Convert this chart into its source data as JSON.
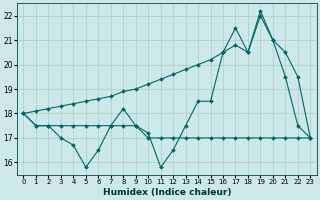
{
  "xlabel": "Humidex (Indice chaleur)",
  "bg_color": "#cce8e8",
  "grid_color": "#aacccc",
  "line_color": "#006666",
  "xlim": [
    -0.5,
    23.5
  ],
  "ylim": [
    15.5,
    22.5
  ],
  "yticks": [
    16,
    17,
    18,
    19,
    20,
    21,
    22
  ],
  "xticks": [
    0,
    1,
    2,
    3,
    4,
    5,
    6,
    7,
    8,
    9,
    10,
    11,
    12,
    13,
    14,
    15,
    16,
    17,
    18,
    19,
    20,
    21,
    22,
    23
  ],
  "series_diagonal": {
    "x": [
      0,
      1,
      2,
      3,
      4,
      5,
      6,
      7,
      8,
      9,
      10,
      11,
      12,
      13,
      14,
      15,
      16,
      17,
      18,
      19,
      20,
      21,
      22,
      23
    ],
    "y": [
      18.0,
      18.1,
      18.2,
      18.3,
      18.4,
      18.5,
      18.6,
      18.7,
      18.9,
      19.0,
      19.2,
      19.4,
      19.6,
      19.8,
      20.0,
      20.2,
      20.5,
      20.8,
      20.5,
      22.0,
      21.0,
      20.5,
      19.5,
      17.0
    ]
  },
  "series_flat": {
    "x": [
      0,
      1,
      2,
      3,
      4,
      5,
      6,
      7,
      8,
      9,
      10,
      11,
      12,
      13,
      14,
      15,
      16,
      17,
      18,
      19,
      20,
      21,
      22,
      23
    ],
    "y": [
      18.0,
      17.5,
      17.5,
      17.5,
      17.5,
      17.5,
      17.5,
      17.5,
      17.5,
      17.5,
      17.0,
      17.0,
      17.0,
      17.0,
      17.0,
      17.0,
      17.0,
      17.0,
      17.0,
      17.0,
      17.0,
      17.0,
      17.0,
      17.0
    ]
  },
  "series_zigzag": {
    "x": [
      0,
      1,
      2,
      3,
      4,
      5,
      6,
      7,
      8,
      9,
      10,
      11,
      12,
      13,
      14,
      15,
      16,
      17,
      18,
      19,
      20,
      21,
      22,
      23
    ],
    "y": [
      18.0,
      17.5,
      17.5,
      17.0,
      16.7,
      15.8,
      16.5,
      17.5,
      18.2,
      17.5,
      17.2,
      15.8,
      16.5,
      17.5,
      18.5,
      18.5,
      20.5,
      21.5,
      20.5,
      22.2,
      21.0,
      19.5,
      17.5,
      17.0
    ]
  }
}
